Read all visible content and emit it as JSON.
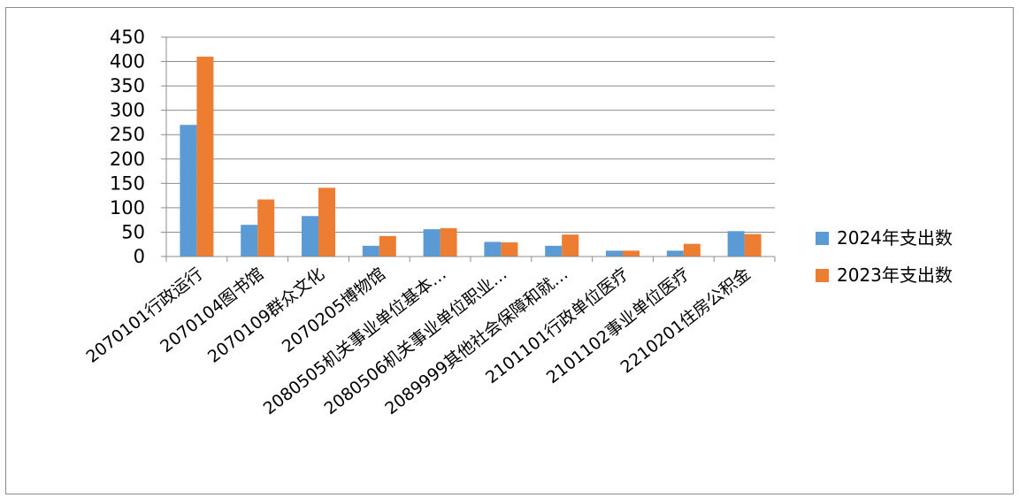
{
  "chart_data": {
    "type": "bar",
    "categories": [
      "2070101行政运行",
      "2070104图书馆",
      "2070109群众文化",
      "2070205博物馆",
      "2080505机关事业单位基本…",
      "2080506机关事业单位职业…",
      "2089999其他社会保障和就…",
      "2101101行政单位医疗",
      "2101102事业单位医疗",
      "2210201住房公积金"
    ],
    "series": [
      {
        "name": "2024年支出数",
        "color": "#5b9bd5",
        "values": [
          270,
          65,
          83,
          22,
          56,
          30,
          22,
          12,
          12,
          52
        ]
      },
      {
        "name": "2023年支出数",
        "color": "#ed7d31",
        "values": [
          410,
          117,
          141,
          42,
          58,
          29,
          45,
          12,
          26,
          46
        ]
      }
    ],
    "ylim": [
      0,
      450
    ],
    "yticks": [
      "0",
      "50",
      "100",
      "150",
      "200",
      "250",
      "300",
      "350",
      "400",
      "450"
    ],
    "grid": true,
    "legend": "right"
  }
}
